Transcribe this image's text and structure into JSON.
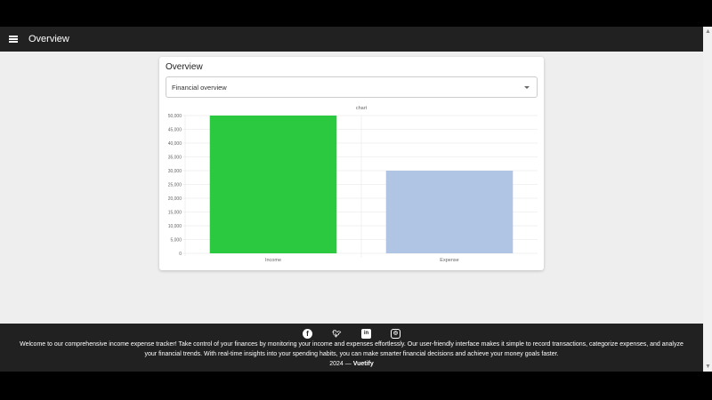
{
  "appbar": {
    "title": "Overview"
  },
  "card": {
    "title": "Overview",
    "select_value": "Financial overview"
  },
  "chart_data": {
    "type": "bar",
    "title": "chart",
    "categories": [
      "Income",
      "Expense"
    ],
    "values": [
      50000,
      30000
    ],
    "colors": [
      "#2ac940",
      "#b0c4e4"
    ],
    "ylim": [
      0,
      50000
    ],
    "yticks": [
      0,
      5000,
      10000,
      15000,
      20000,
      25000,
      30000,
      35000,
      40000,
      45000,
      50000
    ],
    "grid": true,
    "xlabel": "",
    "ylabel": ""
  },
  "footer": {
    "icons": [
      "facebook-icon",
      "twitter-icon",
      "linkedin-icon",
      "instagram-icon"
    ],
    "text": "Welcome to our comprehensive income expense tracker! Take control of your finances by monitoring your income and expenses effortlessly. Our user-friendly interface makes it simple to record transactions, categorize expenses, and analyze your financial trends. With real-time insights into your spending habits, you can make smarter financial decisions and achieve your money goals faster.",
    "year": "2024 —",
    "brand": "Vuetify"
  }
}
